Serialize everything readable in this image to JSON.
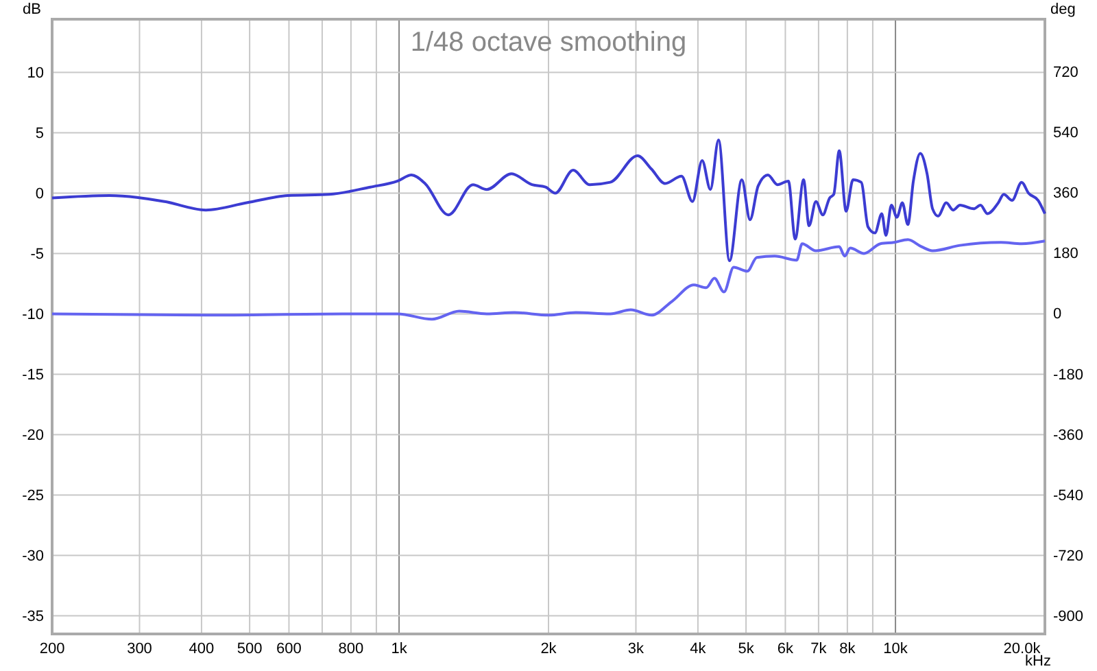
{
  "chart_data": {
    "type": "line",
    "title": "1/48 octave smoothing",
    "ylabel": "dB",
    "y2label": "deg",
    "log": "x",
    "grid": true,
    "xlabel": "kHz",
    "xlim": [
      200,
      20000
    ],
    "xticks": [
      200,
      300,
      400,
      500,
      600,
      {
        "value": 700,
        "label": null
      },
      800,
      {
        "value": 900,
        "label": null
      },
      {
        "value": 1000,
        "label": "1k"
      },
      {
        "value": 2000,
        "label": "2k"
      },
      {
        "value": 3000,
        "label": "3k"
      },
      {
        "value": 4000,
        "label": "4k"
      },
      {
        "value": 5000,
        "label": "5k"
      },
      {
        "value": 6000,
        "label": "6k"
      },
      {
        "value": 7000,
        "label": "7k"
      },
      {
        "value": 8000,
        "label": "8k"
      },
      {
        "value": 9000,
        "label": null
      },
      {
        "value": 10000,
        "label": "10k"
      },
      {
        "value": 20000,
        "label": "20.0k"
      }
    ],
    "ylim": [
      -36.5,
      14.4
    ],
    "yticks": [
      10,
      5,
      0,
      -5,
      -10,
      -15,
      -20,
      -25,
      -30,
      -35
    ],
    "y2lim": [
      -954,
      878
    ],
    "y2ticks": [
      720,
      540,
      360,
      180,
      0,
      -180,
      -360,
      -540,
      -720,
      -900
    ],
    "series": [
      {
        "color": "#3c3cd2",
        "x": [
          200,
          261,
          337,
          408,
          493,
          597,
          723,
          875,
          993,
          1059,
          1128,
          1257,
          1409,
          1502,
          1684,
          1853,
          1973,
          2064,
          2242,
          2421,
          2663,
          3024,
          3223,
          3434,
          3707,
          3900,
          4079,
          4238,
          4401,
          4631,
          4903,
          5093,
          5290,
          5534,
          5785,
          6086,
          6281,
          6530,
          6697,
          6914,
          7139,
          7369,
          7511,
          7704,
          7954,
          8212,
          8531,
          8806,
          9092,
          9386,
          9568,
          9813,
          10066,
          10326,
          10592,
          10866,
          11219,
          11580,
          11879,
          12185,
          12658,
          13068,
          13491,
          14374,
          14838,
          15318,
          16112,
          16525,
          17174,
          17955,
          18535,
          19384,
          20000
        ],
        "values": [
          -0.4,
          -0.2,
          -0.7,
          -1.4,
          -0.8,
          -0.2,
          -0.1,
          0.5,
          1.0,
          1.5,
          0.8,
          -1.8,
          0.7,
          0.3,
          1.6,
          0.7,
          0.5,
          0,
          1.9,
          0.7,
          0.9,
          3.1,
          2.0,
          0.8,
          1.4,
          -0.7,
          2.7,
          0.3,
          4.4,
          -5.6,
          1.1,
          -2.2,
          0.6,
          1.5,
          0.7,
          1.0,
          -3.8,
          1.1,
          -2.7,
          -0.7,
          -1.8,
          -0.4,
          -0.1,
          3.5,
          -1.5,
          1.1,
          0.9,
          -2.8,
          -3.3,
          -1.7,
          -3.5,
          -1.0,
          -2.0,
          -0.8,
          -2.6,
          1.0,
          3.3,
          1.6,
          -1.3,
          -1.9,
          -0.8,
          -1.4,
          -1.0,
          -1.3,
          -1.0,
          -1.7,
          -0.8,
          -0.1,
          -0.6,
          0.9,
          0,
          -0.6,
          -1.7
        ]
      },
      {
        "color": "#6464f0",
        "axis": "y2",
        "x": [
          200,
          408,
          770,
          993,
          1165,
          1322,
          1502,
          1707,
          2000,
          2271,
          2663,
          2929,
          3223,
          3546,
          3925,
          4157,
          4318,
          4514,
          4721,
          5029,
          5257,
          5712,
          6325,
          6487,
          6914,
          7704,
          7903,
          8107,
          8640,
          9327,
          9939,
          10592,
          11290,
          11879,
          13491,
          16317,
          17955,
          20000
        ],
        "values": [
          0,
          -4,
          0,
          0,
          -16,
          8,
          0,
          4,
          -4,
          4,
          0,
          12,
          -4,
          37,
          86,
          78,
          106,
          65,
          139,
          127,
          168,
          172,
          160,
          209,
          188,
          200,
          172,
          196,
          180,
          209,
          213,
          221,
          200,
          188,
          204,
          213,
          209,
          217
        ]
      }
    ]
  }
}
